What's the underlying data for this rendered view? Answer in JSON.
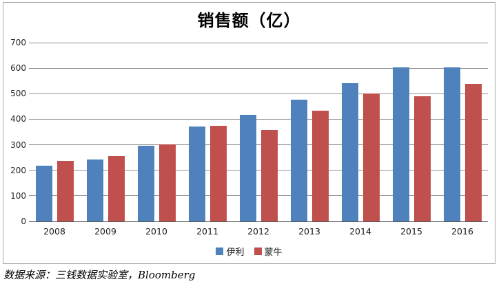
{
  "chart_data": {
    "type": "bar",
    "title": "销售额（亿）",
    "categories": [
      "2008",
      "2009",
      "2010",
      "2011",
      "2012",
      "2013",
      "2014",
      "2015",
      "2016"
    ],
    "series": [
      {
        "name": "伊利",
        "color": "#4F81BD",
        "values": [
          217,
          243,
          297,
          372,
          418,
          476,
          542,
          602,
          602
        ]
      },
      {
        "name": "蒙牛",
        "color": "#C0504D",
        "values": [
          238,
          257,
          301,
          375,
          359,
          433,
          500,
          490,
          539
        ]
      }
    ],
    "xlabel": "",
    "ylabel": "",
    "ylim": [
      0,
      700
    ],
    "yticks": [
      0,
      100,
      200,
      300,
      400,
      500,
      600,
      700
    ],
    "grid": true,
    "legend_position": "bottom",
    "source_note": "数据来源：三钱数据实验室，Bloomberg"
  },
  "colors": {
    "frame_border": "#a6a6a6",
    "gridline": "#8e8e8e",
    "axis_line": "#565656",
    "background": "#ffffff"
  }
}
